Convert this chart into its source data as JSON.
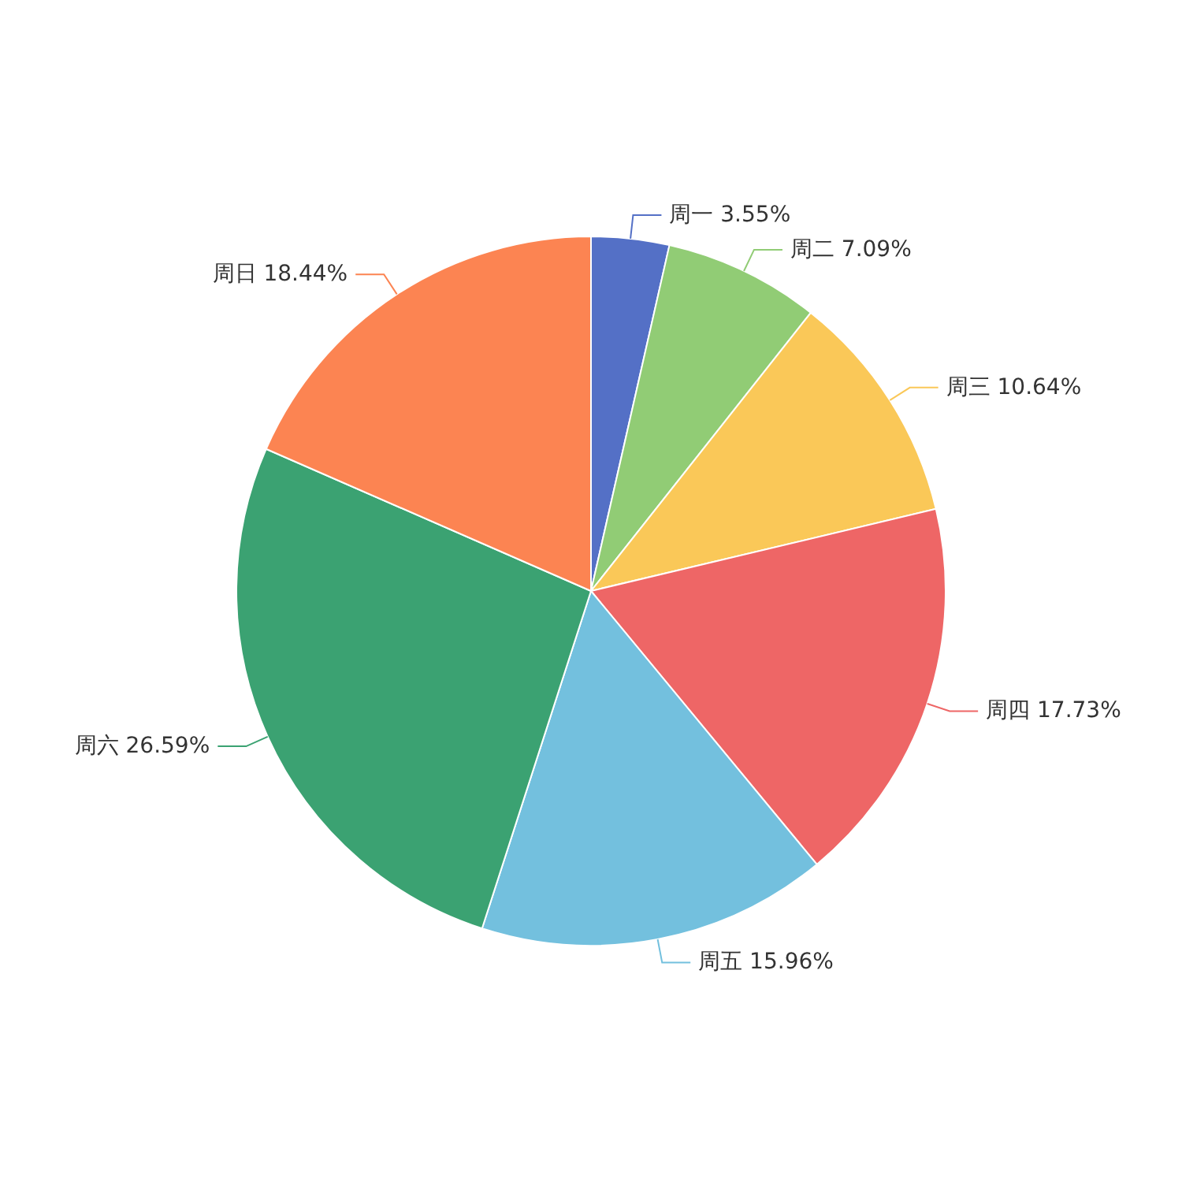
{
  "chart_data": {
    "type": "pie",
    "categories": [
      "周一",
      "周二",
      "周三",
      "周四",
      "周五",
      "周六",
      "周日"
    ],
    "values": [
      3.55,
      7.09,
      10.64,
      17.73,
      15.96,
      26.59,
      18.44
    ],
    "value_labels": [
      "3.55%",
      "7.09%",
      "10.64%",
      "17.73%",
      "15.96%",
      "26.59%",
      "18.44%"
    ],
    "colors": [
      "#5470c6",
      "#91cc75",
      "#fac858",
      "#ee6666",
      "#73c0de",
      "#3ba272",
      "#fc8452"
    ]
  }
}
